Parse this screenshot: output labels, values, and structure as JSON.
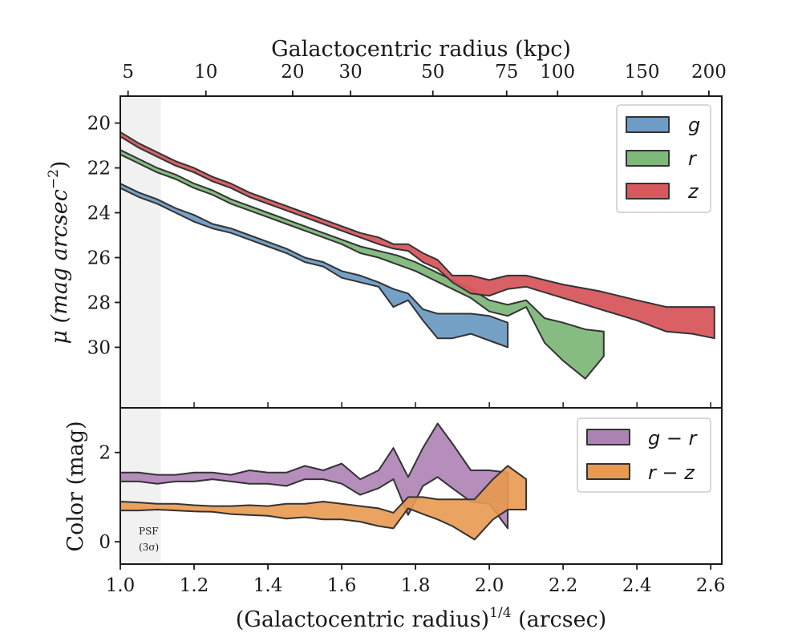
{
  "chart_data": {
    "type": "area",
    "top_axis": {
      "label": "Galactocentric radius (kpc)",
      "ticks": [
        {
          "label": "5",
          "x": 1.021
        },
        {
          "label": "10",
          "x": 1.232
        },
        {
          "label": "20",
          "x": 1.467
        },
        {
          "label": "30",
          "x": 1.624
        },
        {
          "label": "50",
          "x": 1.847
        },
        {
          "label": "75",
          "x": 2.047
        },
        {
          "label": "100",
          "x": 2.185
        },
        {
          "label": "150",
          "x": 2.414
        },
        {
          "label": "200",
          "x": 2.595
        }
      ]
    },
    "x_axis": {
      "label": "(Galactocentric radius)",
      "label_sup": "1/4",
      "label_unit": " (arcsec)",
      "range": [
        1.0,
        2.63
      ],
      "ticks": [
        "1.0",
        "1.2",
        "1.4",
        "1.6",
        "1.8",
        "2.0",
        "2.2",
        "2.4",
        "2.6"
      ]
    },
    "psf": {
      "x_range": [
        1.0,
        1.11
      ],
      "label_line1": "PSF",
      "label_line2": "(3σ)"
    },
    "panels": [
      {
        "id": "surface-brightness",
        "ylabel": "μ (mag arcsec",
        "ylabel_sup": "−2",
        "ylabel_close": ")",
        "ylim": [
          18.8,
          32.7
        ],
        "y_inverted": true,
        "yticks": [
          "20",
          "22",
          "24",
          "26",
          "28",
          "30"
        ],
        "legend_position": "upper-right",
        "series": [
          {
            "name": "g",
            "color": "#6f9cc4",
            "x": [
              1.0,
              1.05,
              1.1,
              1.15,
              1.2,
              1.25,
              1.3,
              1.35,
              1.4,
              1.45,
              1.5,
              1.55,
              1.6,
              1.65,
              1.7,
              1.74,
              1.78,
              1.82,
              1.86,
              1.9,
              1.95,
              2.0,
              2.05
            ],
            "lower": [
              22.7,
              23.1,
              23.4,
              23.8,
              24.1,
              24.5,
              24.7,
              25.0,
              25.3,
              25.6,
              26.0,
              26.2,
              26.6,
              26.8,
              27.1,
              27.4,
              27.6,
              28.3,
              28.5,
              28.5,
              28.5,
              28.6,
              28.9
            ],
            "upper": [
              22.9,
              23.3,
              23.6,
              24.0,
              24.4,
              24.7,
              24.9,
              25.2,
              25.5,
              25.8,
              26.2,
              26.4,
              26.9,
              27.1,
              27.3,
              28.2,
              27.9,
              28.8,
              29.6,
              29.6,
              29.4,
              29.7,
              30.0
            ]
          },
          {
            "name": "r",
            "color": "#7fb87a",
            "x": [
              1.0,
              1.05,
              1.1,
              1.15,
              1.2,
              1.25,
              1.3,
              1.35,
              1.4,
              1.45,
              1.5,
              1.55,
              1.6,
              1.65,
              1.7,
              1.75,
              1.8,
              1.85,
              1.9,
              1.95,
              2.0,
              2.05,
              2.1,
              2.15,
              2.2,
              2.26,
              2.31
            ],
            "lower": [
              21.2,
              21.6,
              22.0,
              22.3,
              22.7,
              23.0,
              23.4,
              23.7,
              24.0,
              24.3,
              24.6,
              24.9,
              25.2,
              25.5,
              25.7,
              25.9,
              26.2,
              26.6,
              27.0,
              27.4,
              27.9,
              28.1,
              27.9,
              28.7,
              28.9,
              29.2,
              29.3
            ],
            "upper": [
              21.4,
              21.8,
              22.2,
              22.5,
              22.9,
              23.2,
              23.6,
              23.9,
              24.2,
              24.5,
              24.8,
              25.1,
              25.4,
              25.8,
              26.0,
              26.3,
              26.6,
              27.0,
              27.4,
              27.8,
              28.4,
              28.6,
              28.2,
              29.8,
              30.6,
              31.4,
              30.4
            ]
          },
          {
            "name": "z",
            "color": "#d7595e",
            "x": [
              1.0,
              1.05,
              1.1,
              1.15,
              1.2,
              1.25,
              1.3,
              1.35,
              1.4,
              1.45,
              1.5,
              1.55,
              1.6,
              1.65,
              1.7,
              1.74,
              1.78,
              1.82,
              1.86,
              1.9,
              1.95,
              2.0,
              2.05,
              2.1,
              2.2,
              2.3,
              2.4,
              2.48,
              2.55,
              2.61
            ],
            "lower": [
              20.4,
              20.9,
              21.3,
              21.7,
              22.0,
              22.4,
              22.7,
              23.1,
              23.4,
              23.7,
              24.0,
              24.3,
              24.6,
              24.9,
              25.1,
              25.4,
              25.4,
              25.8,
              26.1,
              26.8,
              26.8,
              27.0,
              26.8,
              26.8,
              27.2,
              27.5,
              27.9,
              28.2,
              28.2,
              28.2
            ],
            "upper": [
              20.6,
              21.1,
              21.5,
              21.9,
              22.2,
              22.6,
              22.9,
              23.3,
              23.6,
              23.9,
              24.2,
              24.5,
              24.8,
              25.1,
              25.4,
              25.6,
              25.7,
              26.2,
              26.5,
              27.1,
              27.6,
              27.7,
              27.4,
              27.3,
              27.8,
              28.3,
              28.8,
              29.3,
              29.4,
              29.6
            ]
          }
        ]
      },
      {
        "id": "color",
        "ylabel": "Color (mag)",
        "ylim": [
          -0.5,
          3.0
        ],
        "y_inverted": false,
        "yticks": [
          "0",
          "2"
        ],
        "legend_position": "upper-right",
        "series": [
          {
            "name": "g − r",
            "color": "#ad82b5",
            "x": [
              1.0,
              1.05,
              1.1,
              1.15,
              1.2,
              1.25,
              1.3,
              1.35,
              1.4,
              1.45,
              1.5,
              1.55,
              1.6,
              1.65,
              1.7,
              1.74,
              1.78,
              1.82,
              1.86,
              1.9,
              1.95,
              2.0,
              2.05
            ],
            "lower": [
              1.35,
              1.35,
              1.3,
              1.35,
              1.35,
              1.4,
              1.35,
              1.3,
              1.3,
              1.25,
              1.4,
              1.4,
              1.3,
              1.05,
              1.2,
              1.4,
              0.6,
              1.25,
              1.45,
              1.2,
              0.9,
              0.85,
              0.3
            ],
            "upper": [
              1.55,
              1.55,
              1.5,
              1.5,
              1.55,
              1.55,
              1.5,
              1.6,
              1.55,
              1.55,
              1.7,
              1.6,
              1.75,
              1.4,
              1.6,
              2.1,
              1.45,
              2.1,
              2.65,
              2.2,
              1.6,
              1.6,
              1.55
            ]
          },
          {
            "name": "r − z",
            "color": "#e8994f",
            "x": [
              1.0,
              1.05,
              1.1,
              1.15,
              1.2,
              1.25,
              1.3,
              1.35,
              1.4,
              1.45,
              1.5,
              1.55,
              1.6,
              1.65,
              1.7,
              1.74,
              1.78,
              1.82,
              1.86,
              1.9,
              1.96,
              2.01,
              2.05,
              2.1
            ],
            "lower": [
              0.7,
              0.7,
              0.72,
              0.7,
              0.68,
              0.67,
              0.62,
              0.6,
              0.58,
              0.52,
              0.55,
              0.5,
              0.5,
              0.45,
              0.35,
              0.3,
              0.75,
              0.62,
              0.5,
              0.35,
              0.05,
              0.5,
              0.72,
              0.72
            ],
            "upper": [
              0.9,
              0.88,
              0.85,
              0.85,
              0.82,
              0.8,
              0.8,
              0.82,
              0.8,
              0.85,
              0.85,
              0.9,
              0.85,
              0.8,
              0.75,
              0.65,
              1.0,
              1.0,
              0.95,
              0.95,
              0.95,
              1.4,
              1.7,
              1.4
            ]
          }
        ]
      }
    ]
  }
}
